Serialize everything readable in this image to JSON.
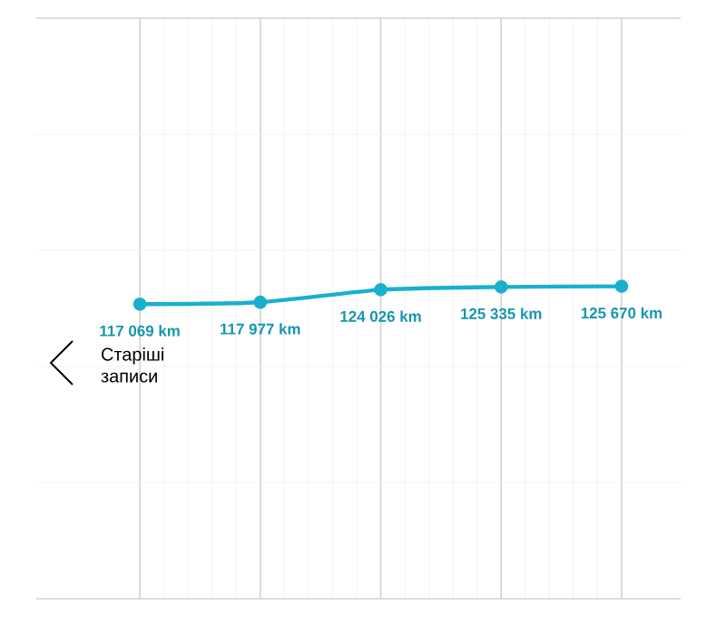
{
  "chart_data": {
    "type": "line",
    "categories": [
      null,
      null,
      null,
      null,
      null
    ],
    "values": [
      117069,
      117977,
      124026,
      125335,
      125670
    ],
    "value_labels": [
      "117 069 km",
      "117 977 km",
      "124 026 km",
      "125 335 km",
      "125 670 km"
    ],
    "ylim": [
      -25000,
      255000
    ],
    "color": "#1ab0cc",
    "marker": "circle",
    "grid": true,
    "annotations": [
      "Старіші записи"
    ]
  }
}
